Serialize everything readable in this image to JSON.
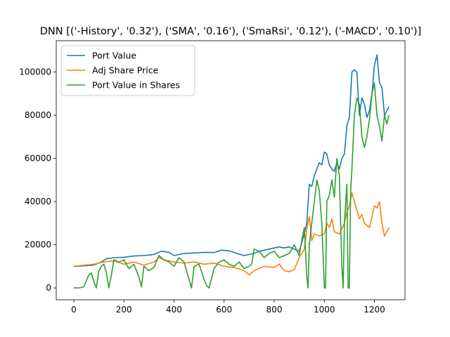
{
  "chart_data": {
    "type": "line",
    "title": "DNN [('-History', '0.32'), ('SMA', '0.16'), ('SmaRsi', '0.12'), ('-MACD', '0.10')]",
    "xlabel": "",
    "ylabel": "",
    "xlim": [
      -70,
      1322
    ],
    "ylim": [
      -5500,
      114500
    ],
    "x_ticks": [
      0,
      200,
      400,
      600,
      800,
      1000,
      1200
    ],
    "x_tick_labels": [
      "0",
      "200",
      "400",
      "600",
      "800",
      "1000",
      "1200"
    ],
    "y_ticks": [
      0,
      20000,
      40000,
      60000,
      80000,
      100000
    ],
    "y_tick_labels": [
      "0",
      "20000",
      "40000",
      "60000",
      "80000",
      "100000"
    ],
    "grid": false,
    "legend_position": "top-left",
    "series": [
      {
        "name": "Port Value",
        "color": "#1f77b4",
        "points": [
          [
            0,
            10000
          ],
          [
            40,
            10200
          ],
          [
            80,
            10600
          ],
          [
            110,
            12000
          ],
          [
            130,
            13500
          ],
          [
            160,
            14000
          ],
          [
            200,
            14200
          ],
          [
            240,
            14800
          ],
          [
            280,
            15000
          ],
          [
            320,
            15500
          ],
          [
            350,
            17000
          ],
          [
            380,
            16500
          ],
          [
            400,
            15000
          ],
          [
            440,
            16000
          ],
          [
            480,
            16200
          ],
          [
            520,
            16500
          ],
          [
            560,
            16400
          ],
          [
            590,
            17500
          ],
          [
            620,
            17200
          ],
          [
            650,
            16000
          ],
          [
            680,
            15000
          ],
          [
            700,
            15500
          ],
          [
            720,
            16000
          ],
          [
            740,
            17000
          ],
          [
            760,
            17500
          ],
          [
            780,
            18000
          ],
          [
            800,
            18500
          ],
          [
            820,
            19000
          ],
          [
            840,
            18500
          ],
          [
            860,
            19000
          ],
          [
            880,
            18000
          ],
          [
            900,
            17000
          ],
          [
            920,
            25000
          ],
          [
            930,
            30000
          ],
          [
            940,
            48000
          ],
          [
            950,
            47000
          ],
          [
            960,
            52000
          ],
          [
            970,
            55000
          ],
          [
            980,
            58000
          ],
          [
            990,
            57000
          ],
          [
            1000,
            63000
          ],
          [
            1010,
            62000
          ],
          [
            1020,
            57000
          ],
          [
            1030,
            55000
          ],
          [
            1040,
            54000
          ],
          [
            1050,
            58000
          ],
          [
            1060,
            55000
          ],
          [
            1070,
            60000
          ],
          [
            1080,
            62000
          ],
          [
            1090,
            75000
          ],
          [
            1100,
            79000
          ],
          [
            1110,
            100000
          ],
          [
            1120,
            101000
          ],
          [
            1130,
            100000
          ],
          [
            1140,
            80000
          ],
          [
            1150,
            88000
          ],
          [
            1160,
            85000
          ],
          [
            1170,
            79000
          ],
          [
            1180,
            82000
          ],
          [
            1190,
            90000
          ],
          [
            1200,
            103000
          ],
          [
            1210,
            108000
          ],
          [
            1220,
            95000
          ],
          [
            1230,
            93000
          ],
          [
            1240,
            80000
          ],
          [
            1250,
            82000
          ],
          [
            1258,
            84000
          ]
        ]
      },
      {
        "name": "Adj Share Price",
        "color": "#ff7f0e",
        "points": [
          [
            0,
            10000
          ],
          [
            40,
            10500
          ],
          [
            80,
            11000
          ],
          [
            120,
            12000
          ],
          [
            160,
            12500
          ],
          [
            200,
            11000
          ],
          [
            240,
            12000
          ],
          [
            280,
            10500
          ],
          [
            320,
            12000
          ],
          [
            340,
            14000
          ],
          [
            360,
            13000
          ],
          [
            400,
            12000
          ],
          [
            440,
            11500
          ],
          [
            480,
            12000
          ],
          [
            520,
            11000
          ],
          [
            560,
            11500
          ],
          [
            600,
            10000
          ],
          [
            640,
            9500
          ],
          [
            680,
            8000
          ],
          [
            700,
            6000
          ],
          [
            720,
            8000
          ],
          [
            760,
            10000
          ],
          [
            800,
            9500
          ],
          [
            820,
            11000
          ],
          [
            840,
            8000
          ],
          [
            860,
            7500
          ],
          [
            880,
            8500
          ],
          [
            900,
            14000
          ],
          [
            920,
            18000
          ],
          [
            930,
            27000
          ],
          [
            940,
            33000
          ],
          [
            950,
            22000
          ],
          [
            960,
            25000
          ],
          [
            980,
            24000
          ],
          [
            1000,
            25000
          ],
          [
            1010,
            30000
          ],
          [
            1020,
            28000
          ],
          [
            1030,
            32000
          ],
          [
            1040,
            26000
          ],
          [
            1060,
            25000
          ],
          [
            1080,
            30000
          ],
          [
            1090,
            35000
          ],
          [
            1100,
            38000
          ],
          [
            1110,
            44000
          ],
          [
            1120,
            40000
          ],
          [
            1130,
            36000
          ],
          [
            1140,
            32000
          ],
          [
            1150,
            34000
          ],
          [
            1160,
            30000
          ],
          [
            1170,
            29000
          ],
          [
            1180,
            28000
          ],
          [
            1190,
            33000
          ],
          [
            1200,
            38000
          ],
          [
            1210,
            37000
          ],
          [
            1220,
            40000
          ],
          [
            1230,
            30000
          ],
          [
            1240,
            24000
          ],
          [
            1250,
            26000
          ],
          [
            1258,
            28000
          ]
        ]
      },
      {
        "name": "Port Value in Shares",
        "color": "#2ca02c",
        "points": [
          [
            0,
            0
          ],
          [
            20,
            0
          ],
          [
            40,
            500
          ],
          [
            60,
            6000
          ],
          [
            70,
            7000
          ],
          [
            80,
            3000
          ],
          [
            90,
            0
          ],
          [
            100,
            8000
          ],
          [
            110,
            10000
          ],
          [
            120,
            11000
          ],
          [
            130,
            7000
          ],
          [
            140,
            0
          ],
          [
            150,
            6000
          ],
          [
            160,
            13000
          ],
          [
            180,
            12000
          ],
          [
            200,
            13000
          ],
          [
            220,
            9000
          ],
          [
            240,
            11000
          ],
          [
            260,
            5000
          ],
          [
            270,
            500
          ],
          [
            280,
            10000
          ],
          [
            300,
            8000
          ],
          [
            320,
            9500
          ],
          [
            340,
            15000
          ],
          [
            360,
            13000
          ],
          [
            380,
            12000
          ],
          [
            400,
            10000
          ],
          [
            420,
            14000
          ],
          [
            440,
            12000
          ],
          [
            460,
            4000
          ],
          [
            470,
            0
          ],
          [
            480,
            10000
          ],
          [
            500,
            11000
          ],
          [
            520,
            4000
          ],
          [
            530,
            1000
          ],
          [
            540,
            0
          ],
          [
            560,
            9000
          ],
          [
            580,
            12000
          ],
          [
            600,
            13000
          ],
          [
            620,
            11000
          ],
          [
            640,
            10000
          ],
          [
            660,
            12000
          ],
          [
            680,
            9000
          ],
          [
            700,
            10000
          ],
          [
            710,
            11000
          ],
          [
            720,
            18000
          ],
          [
            740,
            17000
          ],
          [
            760,
            14000
          ],
          [
            780,
            16000
          ],
          [
            800,
            17000
          ],
          [
            820,
            14000
          ],
          [
            840,
            15000
          ],
          [
            860,
            16000
          ],
          [
            880,
            20000
          ],
          [
            900,
            15000
          ],
          [
            910,
            22000
          ],
          [
            920,
            28000
          ],
          [
            930,
            5000
          ],
          [
            935,
            0
          ],
          [
            940,
            20000
          ],
          [
            950,
            30000
          ],
          [
            960,
            40000
          ],
          [
            970,
            50000
          ],
          [
            980,
            45000
          ],
          [
            990,
            30000
          ],
          [
            1000,
            0
          ],
          [
            1005,
            0
          ],
          [
            1010,
            40000
          ],
          [
            1020,
            43000
          ],
          [
            1030,
            50000
          ],
          [
            1040,
            42000
          ],
          [
            1050,
            60000
          ],
          [
            1060,
            52000
          ],
          [
            1070,
            10000
          ],
          [
            1075,
            0
          ],
          [
            1080,
            30000
          ],
          [
            1090,
            48000
          ],
          [
            1095,
            0
          ],
          [
            1100,
            0
          ],
          [
            1105,
            45000
          ],
          [
            1110,
            55000
          ],
          [
            1120,
            80000
          ],
          [
            1130,
            88000
          ],
          [
            1140,
            85000
          ],
          [
            1150,
            70000
          ],
          [
            1160,
            65000
          ],
          [
            1170,
            70000
          ],
          [
            1180,
            78000
          ],
          [
            1190,
            90000
          ],
          [
            1200,
            95000
          ],
          [
            1210,
            80000
          ],
          [
            1220,
            75000
          ],
          [
            1230,
            68000
          ],
          [
            1240,
            80000
          ],
          [
            1250,
            76000
          ],
          [
            1258,
            80000
          ]
        ]
      }
    ]
  }
}
